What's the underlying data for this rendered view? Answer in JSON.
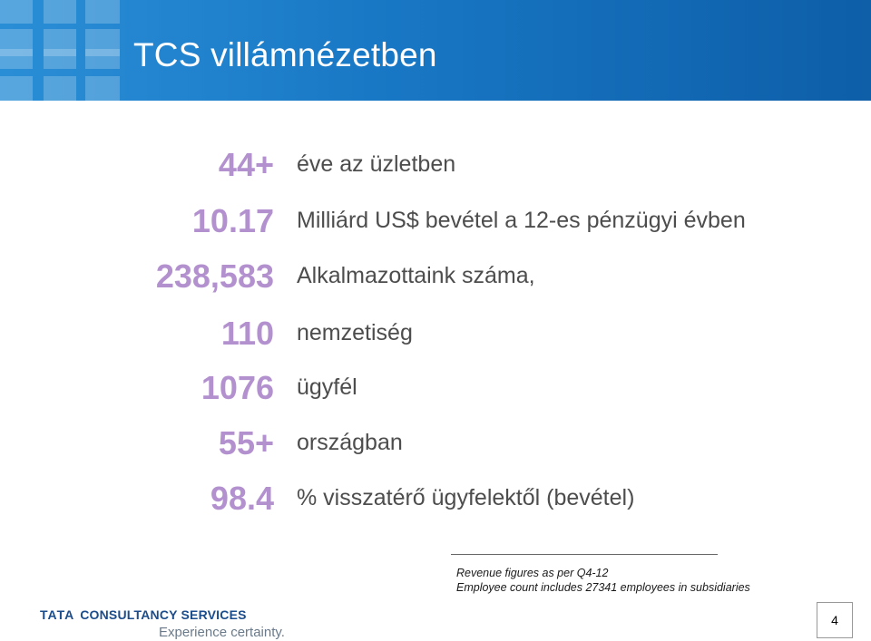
{
  "header": {
    "title": "TCS villámnézetben"
  },
  "stats": [
    {
      "value": "44+",
      "label": "éve az üzletben"
    },
    {
      "value": "10.17",
      "label": "Milliárd US$ bevétel a 12-es pénzügyi évben"
    },
    {
      "value": "238,583",
      "label": "Alkalmazottaink száma,"
    },
    {
      "value": "110",
      "label": "nemzetiség"
    },
    {
      "value": "1076",
      "label": "ügyfél"
    },
    {
      "value": "55+",
      "label": "országban"
    },
    {
      "value": "98.4",
      "label": "% visszatérő ügyfelektől (bevétel)"
    }
  ],
  "footnotes": [
    "Revenue figures as per Q4-12",
    "Employee count includes 27341 employees in subsidiaries"
  ],
  "logo": {
    "brand": "TATA",
    "name": "CONSULTANCY SERVICES",
    "tagline": "Experience certainty."
  },
  "page_number": "4",
  "colors": {
    "header": "#1877c4",
    "value_accent": "#b391cf",
    "label_text": "#4d4d4d",
    "logo_blue": "#1b4c8c"
  }
}
